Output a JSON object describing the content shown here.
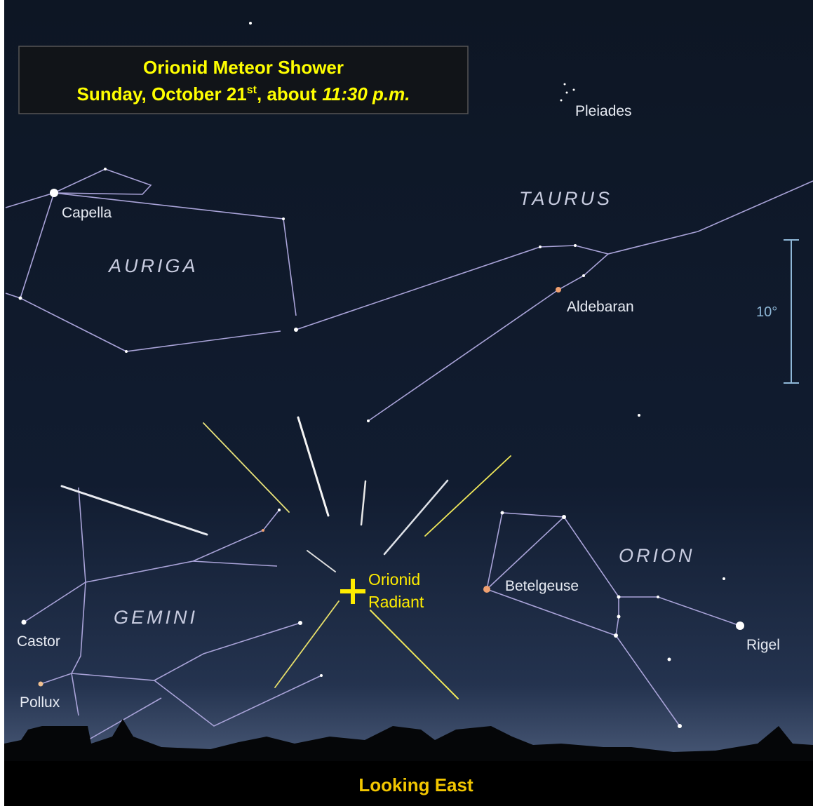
{
  "header": {
    "title": "Orionid Meteor Shower",
    "subtitle": {
      "date": "Sunday, October 21",
      "suffix": "st",
      "about": ", about",
      "time": "11:30 p.m."
    }
  },
  "labels": {
    "pleiades": "Pleiades",
    "taurus": "TAURUS",
    "capella": "Capella",
    "auriga": "AURIGA",
    "aldebaran": "Aldebaran",
    "scale": "10°",
    "orion": "ORION",
    "betelgeuse": "Betelgeuse",
    "rigel": "Rigel",
    "gemini": "GEMINI",
    "castor": "Castor",
    "pollux": "Pollux",
    "radiant_1": "Orionid",
    "radiant_2": "Radiant"
  },
  "footer": "Looking East"
}
